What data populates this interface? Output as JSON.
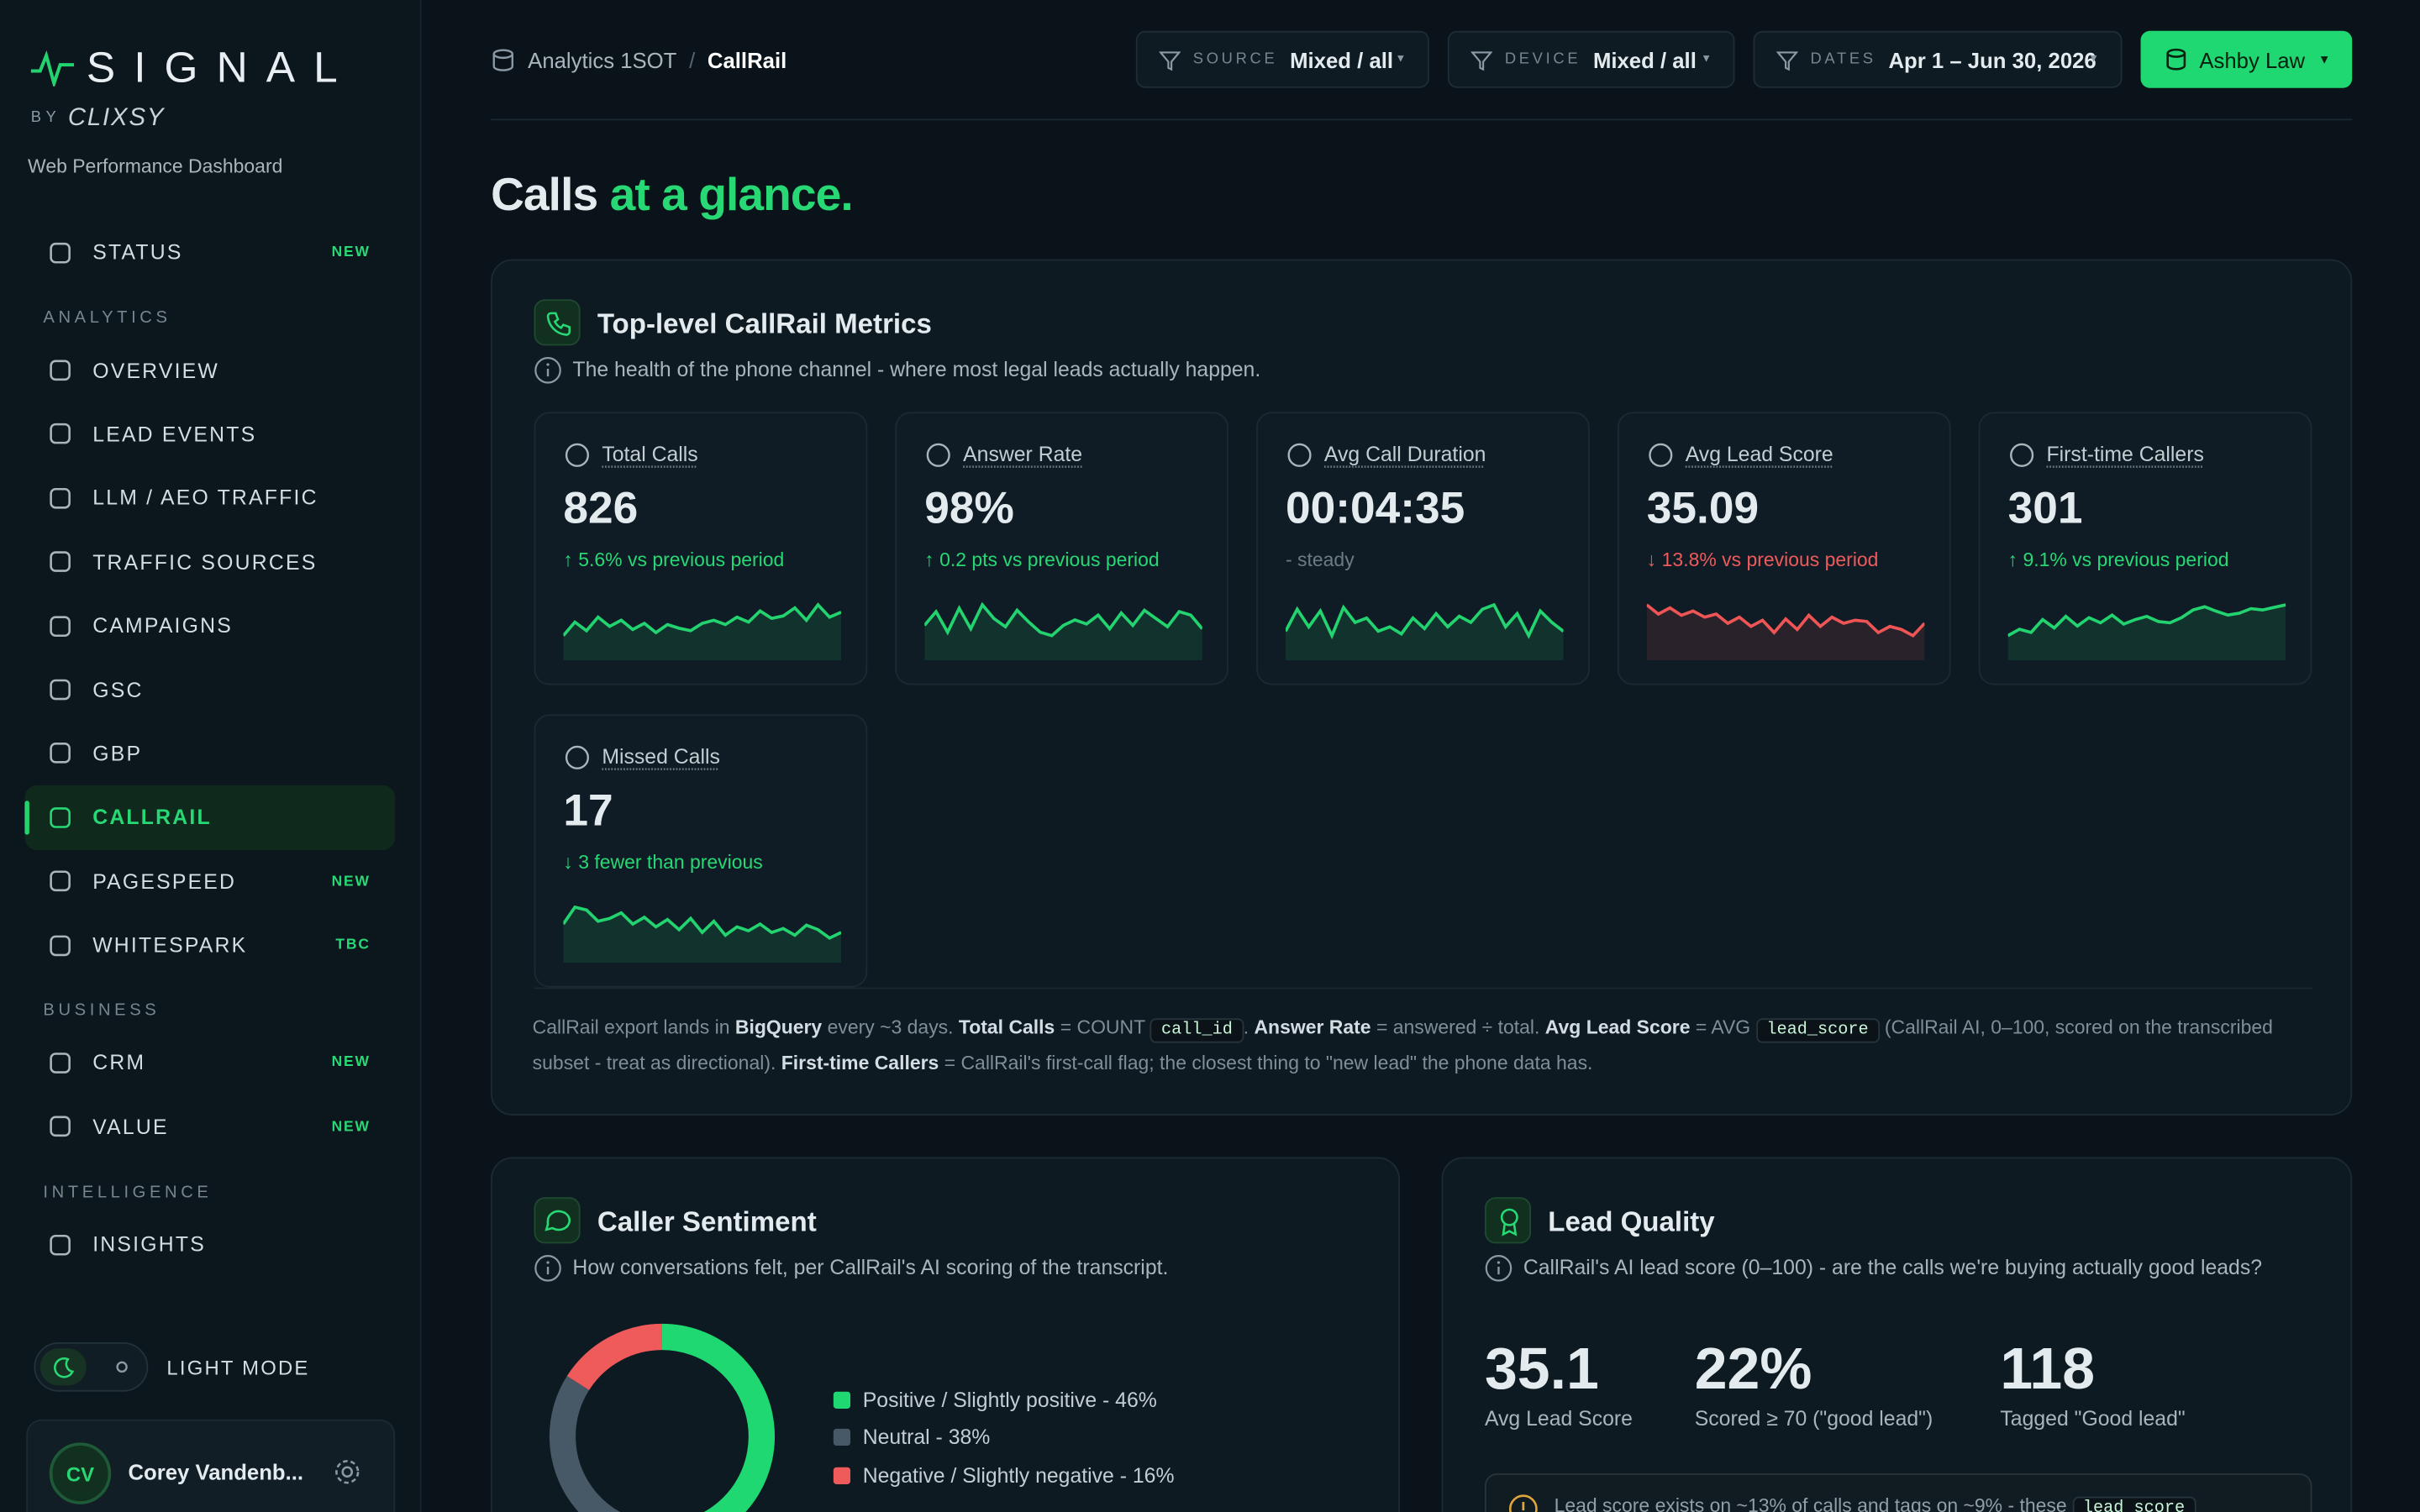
{
  "sidebar": {
    "brand": "SIGNAL",
    "by": "BY",
    "company": "CLIXSY",
    "subtitle": "Web Performance Dashboard",
    "top_items": [
      {
        "label": "STATUS",
        "badge": "NEW"
      }
    ],
    "sections": [
      {
        "title": "ANALYTICS",
        "items": [
          {
            "label": "OVERVIEW"
          },
          {
            "label": "LEAD EVENTS"
          },
          {
            "label": "LLM / AEO TRAFFIC"
          },
          {
            "label": "TRAFFIC SOURCES"
          },
          {
            "label": "CAMPAIGNS"
          },
          {
            "label": "GSC"
          },
          {
            "label": "GBP"
          },
          {
            "label": "CALLRAIL",
            "active": true
          },
          {
            "label": "PAGESPEED",
            "badge": "NEW"
          },
          {
            "label": "WHITESPARK",
            "badge": "TBC"
          }
        ]
      },
      {
        "title": "BUSINESS",
        "items": [
          {
            "label": "CRM",
            "badge": "NEW"
          },
          {
            "label": "VALUE",
            "badge": "NEW"
          }
        ]
      },
      {
        "title": "INTELLIGENCE",
        "items": [
          {
            "label": "INSIGHTS"
          }
        ]
      }
    ],
    "theme_toggle": "LIGHT MODE",
    "user": {
      "initials": "CV",
      "name": "Corey Vandenb..."
    }
  },
  "header": {
    "breadcrumb": [
      "Analytics 1SOT",
      "CallRail"
    ],
    "separator": "/",
    "filters": [
      {
        "label": "SOURCE",
        "value": "Mixed / all"
      },
      {
        "label": "DEVICE",
        "value": "Mixed / all"
      },
      {
        "label": "DATES",
        "value": "Apr 1 – Jun 30, 2026"
      }
    ],
    "client": "Ashby Law"
  },
  "page_title": {
    "main": "Calls",
    "accent": "at a glance."
  },
  "metrics_panel": {
    "title": "Top-level CallRail Metrics",
    "description": "The health of the phone channel - where most legal leads actually happen.",
    "cards": [
      {
        "label": "Total Calls",
        "value": 826,
        "change": "↑ 5.6% vs previous period",
        "tone": "positive",
        "sparkline": {
          "color": "#22d36f",
          "values": [
            30,
            52,
            38,
            60,
            45,
            55,
            40,
            50,
            35,
            48,
            42,
            38,
            50,
            55,
            48,
            60,
            52,
            70,
            58,
            62,
            75,
            55,
            80,
            60,
            68
          ]
        }
      },
      {
        "label": "Answer Rate",
        "value": "98%",
        "change": "↑ 0.2 pts vs previous period",
        "tone": "positive",
        "sparkline": {
          "color": "#22d36f",
          "values": [
            40,
            60,
            30,
            65,
            35,
            70,
            50,
            38,
            62,
            45,
            30,
            25,
            40,
            48,
            42,
            55,
            35,
            58,
            40,
            62,
            50,
            38,
            60,
            55,
            35
          ]
        }
      },
      {
        "label": "Avg Call Duration",
        "value": "00:04:35",
        "change": "- steady",
        "tone": "neutral",
        "sparkline": {
          "color": "#22d36f",
          "values": [
            35,
            60,
            40,
            58,
            30,
            62,
            45,
            50,
            35,
            40,
            32,
            50,
            38,
            55,
            40,
            52,
            45,
            60,
            65,
            40,
            55,
            30,
            58,
            45,
            35
          ]
        }
      },
      {
        "label": "Avg Lead Score",
        "value": 35.09,
        "change": "↓ 13.8% vs previous period",
        "tone": "negative",
        "sparkline": {
          "color": "#ef5555",
          "values": [
            75,
            60,
            70,
            58,
            65,
            55,
            60,
            45,
            55,
            40,
            50,
            30,
            52,
            35,
            58,
            40,
            55,
            45,
            50,
            48,
            30,
            40,
            35,
            25,
            45
          ]
        }
      },
      {
        "label": "First-time Callers",
        "value": 301,
        "change": "↑ 9.1% vs previous period",
        "tone": "positive",
        "sparkline": {
          "color": "#22d36f",
          "values": [
            30,
            40,
            35,
            55,
            42,
            60,
            45,
            58,
            50,
            62,
            48,
            55,
            60,
            52,
            50,
            58,
            70,
            75,
            68,
            62,
            65,
            72,
            70,
            74,
            78
          ]
        }
      },
      {
        "label": "Missed Calls",
        "value": 17,
        "change": "↓ 3 fewer than previous",
        "tone": "positive",
        "sparkline": {
          "color": "#22d36f",
          "values": [
            50,
            80,
            75,
            55,
            60,
            70,
            50,
            62,
            45,
            58,
            40,
            60,
            35,
            55,
            30,
            45,
            38,
            50,
            35,
            42,
            30,
            48,
            40,
            25,
            35
          ]
        }
      }
    ],
    "footnote": [
      {
        "text": "CallRail export lands in ",
        "style": "plain"
      },
      {
        "text": "BigQuery",
        "style": "bold"
      },
      {
        "text": " every ~3 days. ",
        "style": "plain"
      },
      {
        "text": "Total Calls",
        "style": "bold"
      },
      {
        "text": " = COUNT ",
        "style": "plain"
      },
      {
        "text": "call_id",
        "style": "code"
      },
      {
        "text": ". ",
        "style": "plain"
      },
      {
        "text": "Answer Rate",
        "style": "bold"
      },
      {
        "text": " = answered ÷ total. ",
        "style": "plain"
      },
      {
        "text": "Avg Lead Score",
        "style": "bold"
      },
      {
        "text": " = AVG ",
        "style": "plain"
      },
      {
        "text": "lead_score",
        "style": "code"
      },
      {
        "text": " (CallRail AI, 0–100, scored on the transcribed subset - treat as directional). ",
        "style": "plain"
      },
      {
        "text": "First-time Callers",
        "style": "bold"
      },
      {
        "text": " = CallRail's first-call flag; the closest thing to \"new lead\" the phone data has.",
        "style": "plain"
      }
    ]
  },
  "sentiment": {
    "title": "Caller Sentiment",
    "description": "How conversations felt, per CallRail's AI scoring of the transcript.",
    "chart": {
      "type": "donut",
      "series": [
        {
          "label": "Positive / Slightly positive - 46%",
          "value": 46,
          "color": "#1fd872"
        },
        {
          "label": "Neutral - 38%",
          "value": 38,
          "color": "#475866"
        },
        {
          "label": "Negative / Slightly negative - 16%",
          "value": 16,
          "color": "#ef5a5a"
        }
      ]
    }
  },
  "lead_quality": {
    "title": "Lead Quality",
    "description": "CallRail's AI lead score (0–100) - are the calls we're buying actually good leads?",
    "stats": [
      {
        "value": 35.1,
        "label": "Avg Lead Score"
      },
      {
        "value": "22%",
        "label": "Scored ≥ 70 (\"good lead\")"
      },
      {
        "value": 118,
        "label": "Tagged \"Good lead\""
      }
    ],
    "note": [
      {
        "text": "Lead score exists on ~13% of calls and tags on ~9% - these ",
        "style": "plain"
      },
      {
        "text": "lead_score",
        "style": "code"
      }
    ]
  }
}
